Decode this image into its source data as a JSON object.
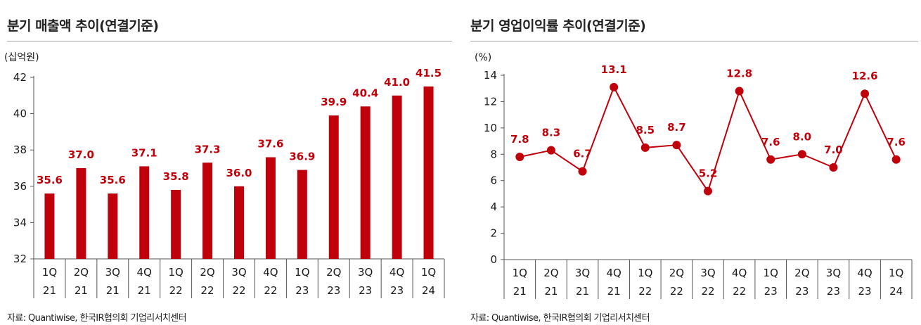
{
  "colors": {
    "accent": "#c0000b",
    "axis": "#555555",
    "source_text": "#222222"
  },
  "left_panel": {
    "title": "분기 매출액 추이(연결기준)",
    "source": "자료: Quantiwise, 한국IR협의회 기업리서치센터"
  },
  "right_panel": {
    "title": "분기 영업이익률 추이(연결기준)",
    "source": "자료: Quantiwise, 한국IR협의회 기업리서치센터"
  },
  "chart_data": [
    {
      "type": "bar",
      "title": "분기 매출액 추이(연결기준)",
      "unit": "(십억원)",
      "categories": [
        [
          "1Q",
          "21"
        ],
        [
          "2Q",
          "21"
        ],
        [
          "3Q",
          "21"
        ],
        [
          "4Q",
          "21"
        ],
        [
          "1Q",
          "22"
        ],
        [
          "2Q",
          "22"
        ],
        [
          "3Q",
          "22"
        ],
        [
          "4Q",
          "22"
        ],
        [
          "1Q",
          "23"
        ],
        [
          "2Q",
          "23"
        ],
        [
          "3Q",
          "23"
        ],
        [
          "4Q",
          "23"
        ],
        [
          "1Q",
          "24"
        ]
      ],
      "values": [
        35.6,
        37.0,
        35.6,
        37.1,
        35.8,
        37.3,
        36.0,
        37.6,
        36.9,
        39.9,
        40.4,
        41.0,
        41.5
      ],
      "labels": [
        "35.6",
        "37.0",
        "35.6",
        "37.1",
        "35.8",
        "37.3",
        "36.0",
        "37.6",
        "36.9",
        "39.9",
        "40.4",
        "41.0",
        "41.5"
      ],
      "ylim": [
        32,
        42
      ],
      "yticks": [
        32,
        34,
        36,
        38,
        40,
        42
      ],
      "grid": false,
      "legend": "none"
    },
    {
      "type": "line",
      "title": "분기 영업이익률 추이(연결기준)",
      "unit": "(%)",
      "categories": [
        [
          "1Q",
          "21"
        ],
        [
          "2Q",
          "21"
        ],
        [
          "3Q",
          "21"
        ],
        [
          "4Q",
          "21"
        ],
        [
          "1Q",
          "22"
        ],
        [
          "2Q",
          "22"
        ],
        [
          "3Q",
          "22"
        ],
        [
          "4Q",
          "22"
        ],
        [
          "1Q",
          "23"
        ],
        [
          "2Q",
          "23"
        ],
        [
          "3Q",
          "23"
        ],
        [
          "4Q",
          "23"
        ],
        [
          "1Q",
          "24"
        ]
      ],
      "values": [
        7.8,
        8.3,
        6.7,
        13.1,
        8.5,
        8.7,
        5.2,
        12.8,
        7.6,
        8.0,
        7.0,
        12.6,
        7.6
      ],
      "labels": [
        "7.8",
        "8.3",
        "6.7",
        "13.1",
        "8.5",
        "8.7",
        "5.2",
        "12.8",
        "7.6",
        "8.0",
        "7.0",
        "12.6",
        "7.6"
      ],
      "ylim": [
        0,
        14
      ],
      "yticks": [
        0,
        2,
        4,
        6,
        8,
        10,
        12,
        14
      ],
      "grid": false,
      "legend": "none"
    }
  ]
}
